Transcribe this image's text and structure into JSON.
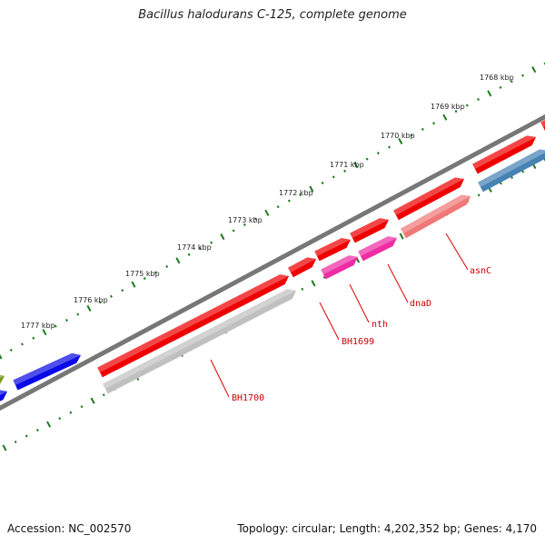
{
  "title": "Bacillus halodurans C-125, complete genome",
  "footer": {
    "accession": "Accession: NC_002570",
    "summary": "Topology: circular; Length: 4,202,352 bp; Genes: 4,170"
  },
  "colors": {
    "backbone": "#777777",
    "ticks": "#1d7a1d",
    "label_line": "#dd0000",
    "label_text": "#cc0000",
    "kbp_text": "#222222"
  },
  "kbp_labels": [
    {
      "text": "1768 kbp"
    },
    {
      "text": "1769 kbp"
    },
    {
      "text": "1770 kbp"
    },
    {
      "text": "1771 kbp"
    },
    {
      "text": "1772 kbp"
    },
    {
      "text": "1773 kbp"
    },
    {
      "text": "1774 kbp"
    },
    {
      "text": "1775 kbp"
    },
    {
      "text": "1776 kbp"
    },
    {
      "text": "1777 kbp"
    }
  ],
  "gene_labels": [
    {
      "name": "asnC"
    },
    {
      "name": "dnaD"
    },
    {
      "name": "nth"
    },
    {
      "name": "BH1699"
    },
    {
      "name": "BH1700"
    }
  ],
  "feature_colors": {
    "cds": "#ee0000",
    "gene_asnC": "#f07878",
    "gene_dnaD": "#ee2da4",
    "gene_nth": "#ee2da4",
    "gene_BH1700": "#c0c0c0",
    "blue_gene": "#0a0ae6",
    "steel_gene": "#4682b4",
    "olive_gene": "#7a9a20"
  }
}
